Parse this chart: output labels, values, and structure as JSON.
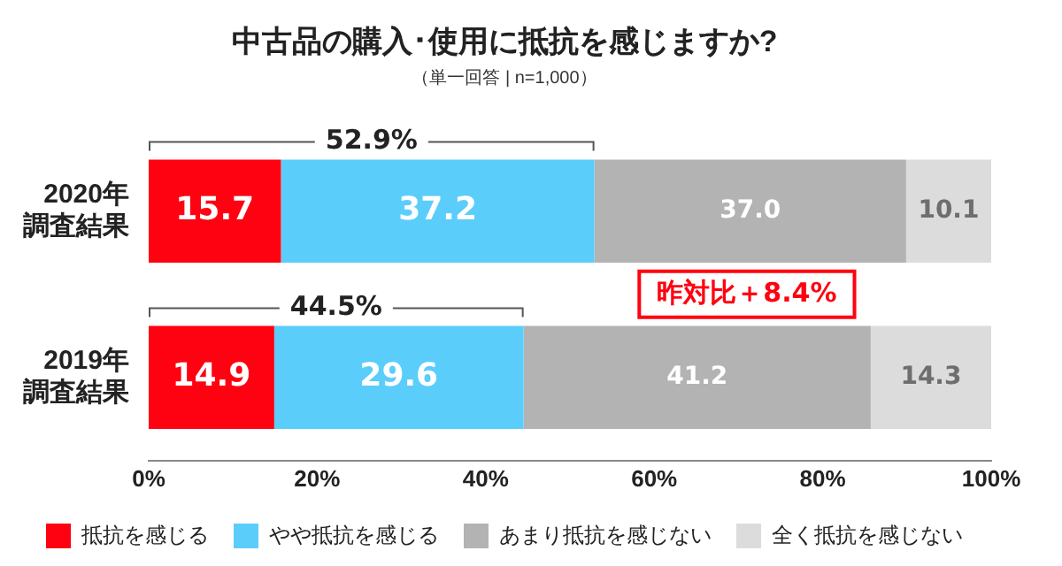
{
  "chart_data": {
    "type": "bar",
    "orientation": "horizontal",
    "stacked": true,
    "title": "中古品の購入･使用に抵抗を感じますか?",
    "subtitle": "（単一回答 | n=1,000）",
    "categories": [
      "2020年調査結果",
      "2019年調査結果"
    ],
    "series": [
      {
        "name": "抵抗を感じる",
        "color": "#ff0211",
        "values": [
          15.7,
          14.9
        ],
        "value_labels": [
          "15.7",
          "14.9"
        ]
      },
      {
        "name": "やや抵抗を感じる",
        "color": "#5bcdfb",
        "values": [
          37.2,
          29.6
        ],
        "value_labels": [
          "37.2",
          "29.6"
        ]
      },
      {
        "name": "あまり抵抗を感じない",
        "color": "#b3b3b3",
        "values": [
          37.0,
          41.2
        ],
        "value_labels": [
          "37.0",
          "41.2"
        ]
      },
      {
        "name": "全く抵抗を感じない",
        "color": "#dcdcdc",
        "values": [
          10.1,
          14.3
        ],
        "value_labels": [
          "10.1",
          "14.3"
        ]
      }
    ],
    "xlim": [
      0,
      100
    ],
    "xticks": [
      {
        "value": 0,
        "label": "0%"
      },
      {
        "value": 20,
        "label": "20%"
      },
      {
        "value": 40,
        "label": "40%"
      },
      {
        "value": 60,
        "label": "60%"
      },
      {
        "value": 80,
        "label": "80%"
      },
      {
        "value": 100,
        "label": "100%"
      }
    ],
    "grid": false,
    "legend": "bottom",
    "annotations": [
      "52.9%",
      "44.5%",
      "昨対比＋8.4%"
    ]
  }
}
